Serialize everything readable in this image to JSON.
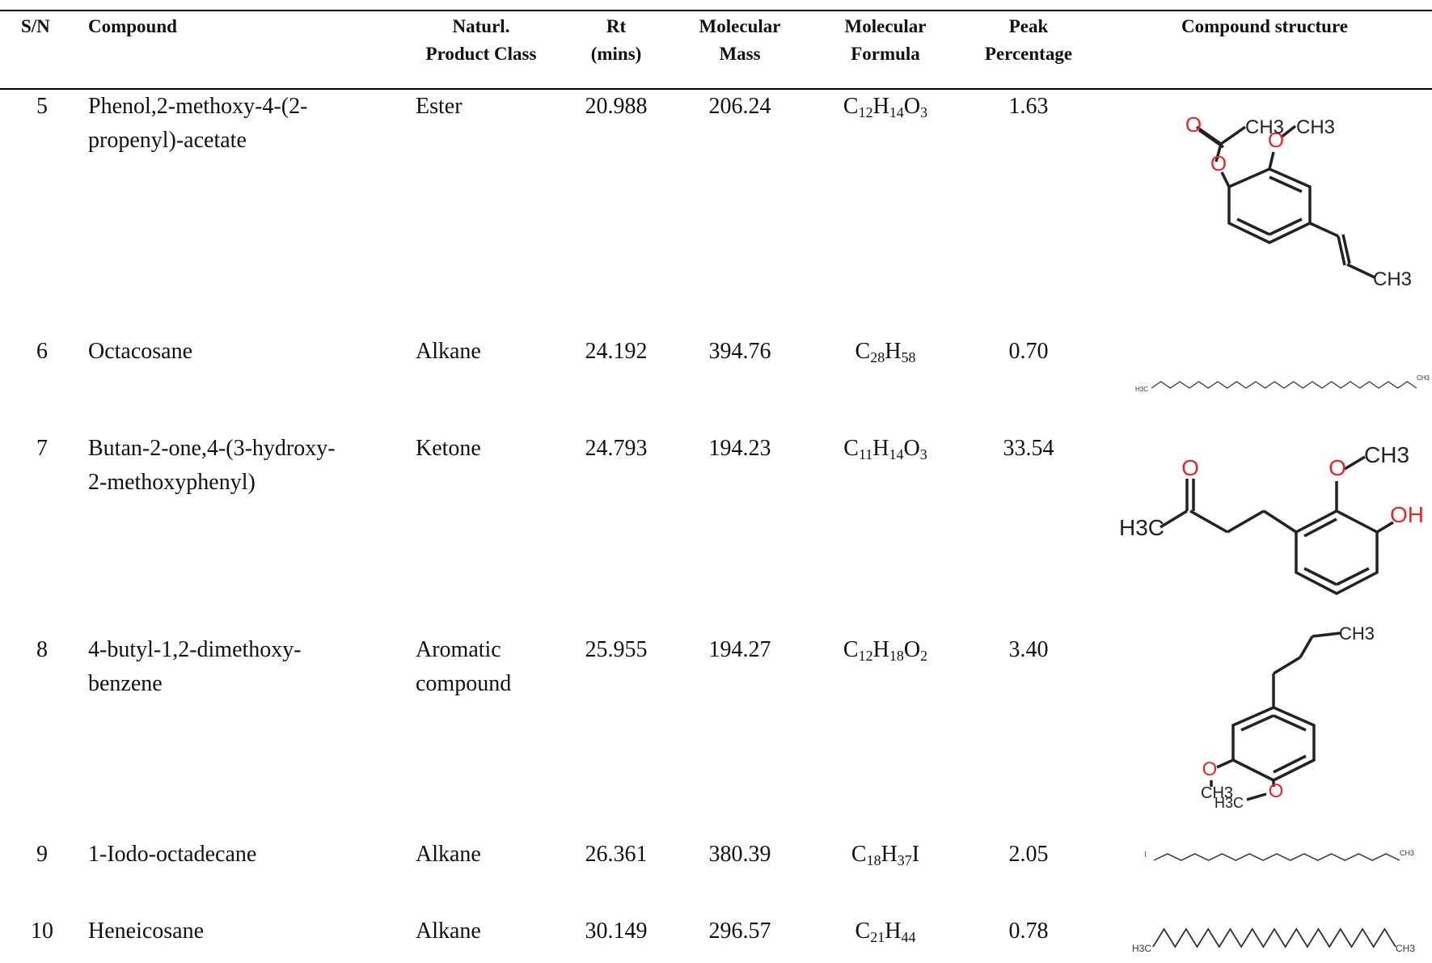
{
  "headers": {
    "sn": "S/N",
    "compound": "Compound",
    "class": [
      "Naturl.",
      "Product Class"
    ],
    "rt": [
      "Rt",
      "(mins)"
    ],
    "mass": [
      "Molecular",
      "Mass"
    ],
    "formula": [
      "Molecular",
      "Formula"
    ],
    "peak": [
      "Peak",
      "Percentage"
    ],
    "structure": "Compound structure"
  },
  "rows": [
    {
      "sn": "5",
      "compound": [
        "Phenol,2-methoxy-4-(2-",
        "propenyl)-acetate"
      ],
      "class": [
        "Ester"
      ],
      "rt": "20.988",
      "mass": "206.24",
      "formula": [
        [
          "C",
          "12"
        ],
        [
          "H",
          "14"
        ],
        [
          "O",
          "3"
        ]
      ],
      "peak": "1.63"
    },
    {
      "sn": "6",
      "compound": [
        "Octacosane"
      ],
      "class": [
        "Alkane"
      ],
      "rt": "24.192",
      "mass": "394.76",
      "formula": [
        [
          "C",
          "28"
        ],
        [
          "H",
          "58"
        ]
      ],
      "peak": "0.70"
    },
    {
      "sn": "7",
      "compound": [
        "Butan-2-one,4-(3-hydroxy-",
        "2-methoxyphenyl)"
      ],
      "class": [
        "Ketone"
      ],
      "rt": "24.793",
      "mass": "194.23",
      "formula": [
        [
          "C",
          "11"
        ],
        [
          "H",
          "14"
        ],
        [
          "O",
          "3"
        ]
      ],
      "peak": "33.54"
    },
    {
      "sn": "8",
      "compound": [
        "4-butyl-1,2-dimethoxy-",
        "benzene"
      ],
      "class": [
        "Aromatic",
        "compound"
      ],
      "rt": "25.955",
      "mass": "194.27",
      "formula": [
        [
          "C",
          "12"
        ],
        [
          "H",
          "18"
        ],
        [
          "O",
          "2"
        ]
      ],
      "peak": "3.40"
    },
    {
      "sn": "9",
      "compound": [
        "1-Iodo-octadecane"
      ],
      "class": [
        "Alkane"
      ],
      "rt": "26.361",
      "mass": "380.39",
      "formula": [
        [
          "C",
          "18"
        ],
        [
          "H",
          "37"
        ],
        [
          "I",
          ""
        ]
      ],
      "peak": "2.05"
    },
    {
      "sn": "10",
      "compound": [
        "Heneicosane"
      ],
      "class": [
        "Alkane"
      ],
      "rt": "30.149",
      "mass": "296.57",
      "formula": [
        [
          "C",
          "21"
        ],
        [
          "H",
          "44"
        ]
      ],
      "peak": "0.78"
    }
  ],
  "structure_labels": {
    "row5": {
      "o_carbonyl": "O",
      "o_ester": "O",
      "o_methoxy": "O",
      "ch3_acetyl": "CH3",
      "ch3_methoxy": "CH3",
      "ch3_propenyl": "CH3"
    },
    "row6": {
      "left": "H3C",
      "right": "CH3"
    },
    "row7": {
      "o_ketone": "O",
      "o_methoxy": "O",
      "ch3_methoxy": "CH3",
      "oh": "OH",
      "h3c": "H3C"
    },
    "row8": {
      "ch3_butyl": "CH3",
      "o1": "O",
      "o2": "O",
      "ch3_1": "CH3",
      "ch3_2": "H3C"
    },
    "row9": {
      "iodo": "I",
      "right": "CH3"
    },
    "row10": {
      "left": "H3C",
      "right": "CH3"
    }
  },
  "colors": {
    "oxygen": "#e8262a",
    "iodine": "#a020a0",
    "bond": "#222222"
  }
}
